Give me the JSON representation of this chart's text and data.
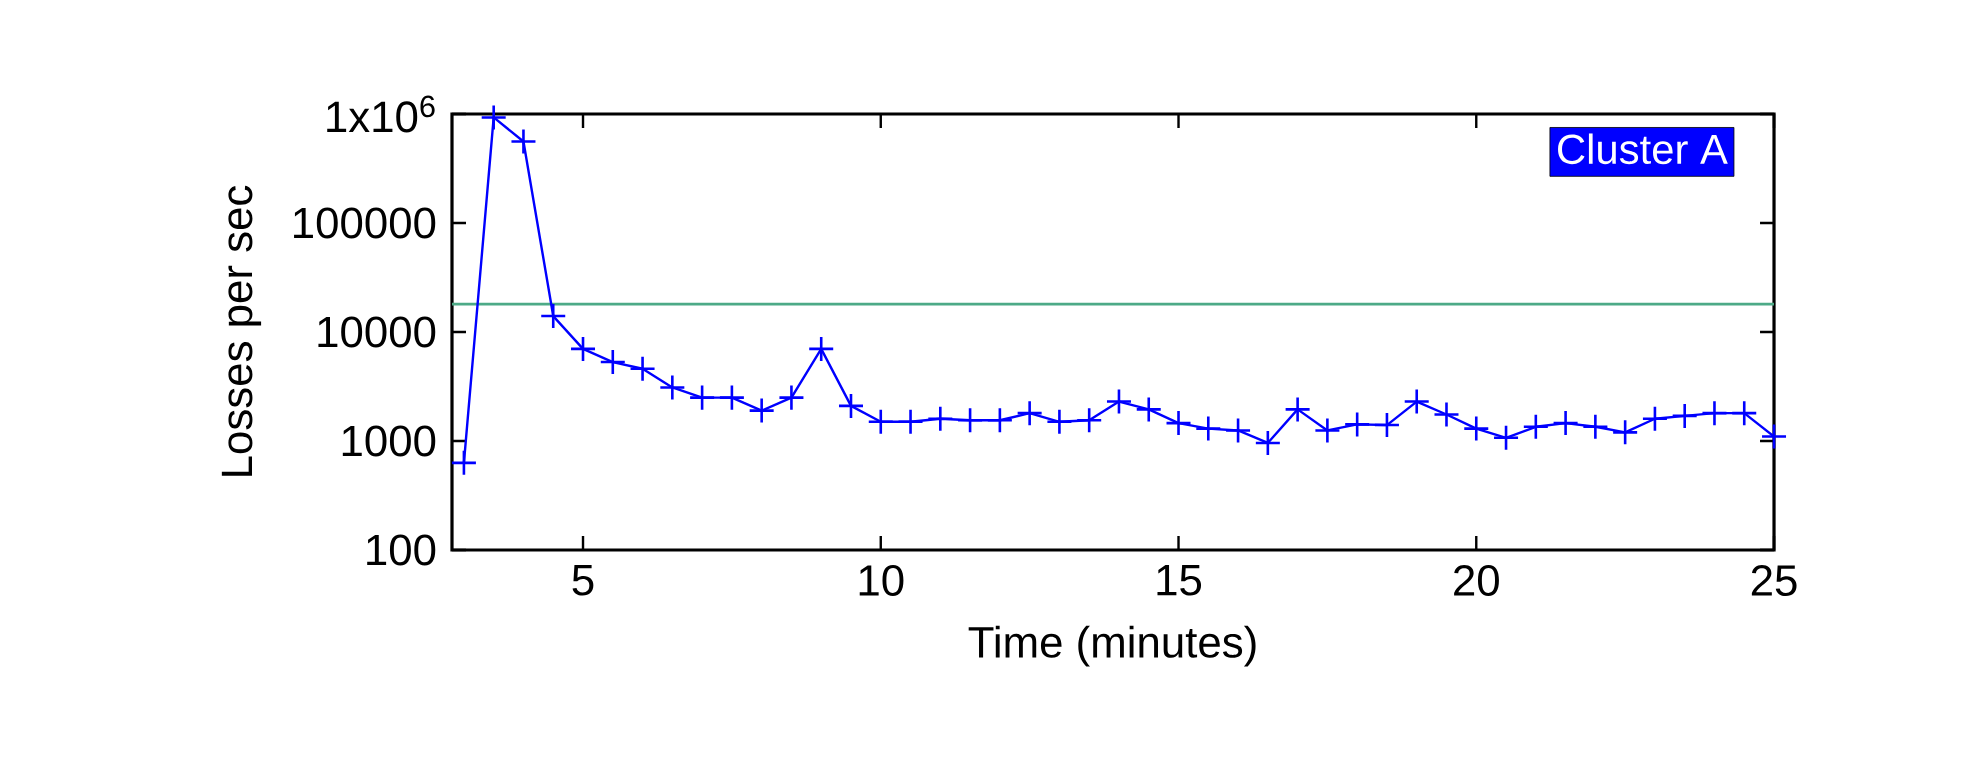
{
  "chart_data": {
    "type": "line",
    "xlabel": "Time (minutes)",
    "ylabel": "Losses per sec",
    "x": [
      3,
      3.5,
      4,
      4.5,
      5,
      5.5,
      6,
      6.5,
      7,
      7.5,
      8,
      8.5,
      9,
      9.5,
      10,
      10.5,
      11,
      11.5,
      12,
      12.5,
      13,
      13.5,
      14,
      14.5,
      15,
      15.5,
      16,
      16.5,
      17,
      17.5,
      18,
      18.5,
      19,
      19.5,
      20,
      20.5,
      21,
      21.5,
      22,
      22.5,
      23,
      23.5,
      24,
      24.5,
      25
    ],
    "series": [
      {
        "name": "Cluster A",
        "color": "#0000ff",
        "values": [
          630,
          930000,
          560000,
          14000,
          7000,
          5300,
          4600,
          3100,
          2500,
          2500,
          1900,
          2500,
          7000,
          2100,
          1500,
          1500,
          1600,
          1550,
          1550,
          1800,
          1500,
          1550,
          2300,
          1950,
          1460,
          1300,
          1250,
          960,
          1950,
          1250,
          1420,
          1400,
          2300,
          1750,
          1300,
          1070,
          1350,
          1460,
          1350,
          1200,
          1600,
          1700,
          1800,
          1800,
          1100
        ]
      }
    ],
    "xlim": [
      2.8,
      25
    ],
    "ylim": [
      100,
      1000000
    ],
    "xticks": [
      5,
      10,
      15,
      20,
      25
    ],
    "yticks": [
      100,
      1000,
      10000,
      100000,
      {
        "value": 1000000,
        "label": "1x10$^{6}$"
      }
    ],
    "log": "y",
    "marker": "cross",
    "legend": "top right",
    "ref_lines": [
      {
        "axis": "y",
        "value": 18000,
        "color": "#4daa87"
      }
    ]
  }
}
